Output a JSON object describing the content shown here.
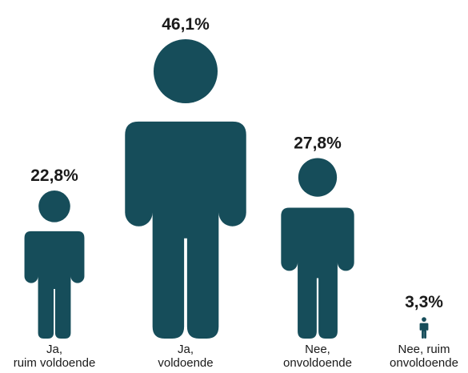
{
  "chart_data": {
    "type": "bar",
    "categories": [
      [
        "Ja,",
        "ruim voldoende"
      ],
      [
        "Ja,",
        "voldoende"
      ],
      [
        "Nee,",
        "onvoldoende"
      ],
      [
        "Nee, ruim",
        "onvoldoende"
      ]
    ],
    "values": [
      22.8,
      46.1,
      27.8,
      3.3
    ],
    "value_labels": [
      "22,8%",
      "46,1%",
      "27,8%",
      "3,3%"
    ],
    "unit": "%",
    "mark": "person-icon",
    "color": "#164d5a"
  }
}
